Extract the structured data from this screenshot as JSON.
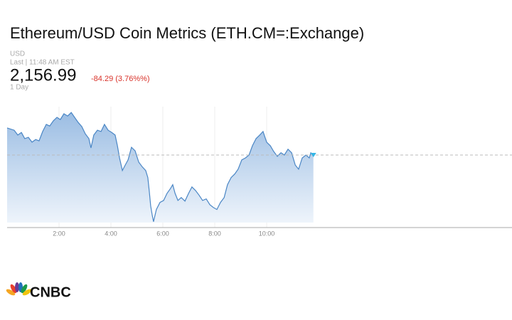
{
  "chart_data": {
    "type": "line",
    "title": "Ethereum/USD Coin Metrics (ETH.CM=:Exchange)",
    "currency": "USD",
    "last_time": "Last | 11:48 AM EST",
    "last": {
      "value": 2156.99,
      "label": "2,156.99"
    },
    "change": "-84.29 (3.76%%)",
    "range": "1 Day",
    "brand": "CNBC",
    "color": "#4a86c5",
    "xlim": [
      0,
      19.45
    ],
    "ylim": [
      1932,
      2307
    ],
    "xticks": [
      {
        "value": 2,
        "label": "2:00"
      },
      {
        "value": 4,
        "label": "4:00"
      },
      {
        "value": 6,
        "label": "6:00"
      },
      {
        "value": 8,
        "label": "8:00"
      },
      {
        "value": 10,
        "label": "10:00"
      }
    ],
    "x": [
      0,
      0.27,
      0.41,
      0.55,
      0.68,
      0.82,
      0.96,
      1.1,
      1.23,
      1.37,
      1.51,
      1.64,
      1.78,
      1.92,
      2.05,
      2.19,
      2.33,
      2.47,
      2.6,
      2.74,
      2.88,
      3.01,
      3.15,
      3.23,
      3.34,
      3.48,
      3.62,
      3.75,
      3.89,
      4.03,
      4.16,
      4.25,
      4.33,
      4.44,
      4.55,
      4.66,
      4.79,
      4.93,
      5.07,
      5.21,
      5.34,
      5.42,
      5.48,
      5.53,
      5.59,
      5.64,
      5.75,
      5.89,
      6.03,
      6.16,
      6.3,
      6.38,
      6.47,
      6.58,
      6.71,
      6.85,
      6.99,
      7.12,
      7.26,
      7.4,
      7.53,
      7.67,
      7.81,
      7.95,
      8.08,
      8.22,
      8.36,
      8.49,
      8.63,
      8.77,
      8.9,
      9.04,
      9.18,
      9.32,
      9.45,
      9.59,
      9.73,
      9.86,
      10,
      10.14,
      10.27,
      10.41,
      10.55,
      10.68,
      10.82,
      10.96,
      11.1,
      11.23,
      11.37,
      11.51,
      11.64,
      11.7,
      11.8
    ],
    "values": [
      2241,
      2234,
      2219,
      2227,
      2208,
      2212,
      2197,
      2205,
      2201,
      2230,
      2252,
      2247,
      2263,
      2274,
      2267,
      2285,
      2278,
      2289,
      2274,
      2258,
      2245,
      2223,
      2208,
      2179,
      2219,
      2234,
      2230,
      2252,
      2234,
      2227,
      2219,
      2186,
      2148,
      2109,
      2126,
      2142,
      2181,
      2170,
      2135,
      2120,
      2109,
      2087,
      2043,
      1999,
      1970,
      1950,
      1988,
      2010,
      2016,
      2038,
      2054,
      2065,
      2038,
      2016,
      2025,
      2014,
      2038,
      2058,
      2047,
      2032,
      2016,
      2021,
      2003,
      1994,
      1988,
      2010,
      2025,
      2065,
      2087,
      2098,
      2113,
      2142,
      2148,
      2157,
      2186,
      2208,
      2219,
      2230,
      2197,
      2186,
      2168,
      2153,
      2164,
      2157,
      2175,
      2164,
      2126,
      2113,
      2148,
      2157,
      2148,
      2164,
      2156.99
    ]
  }
}
